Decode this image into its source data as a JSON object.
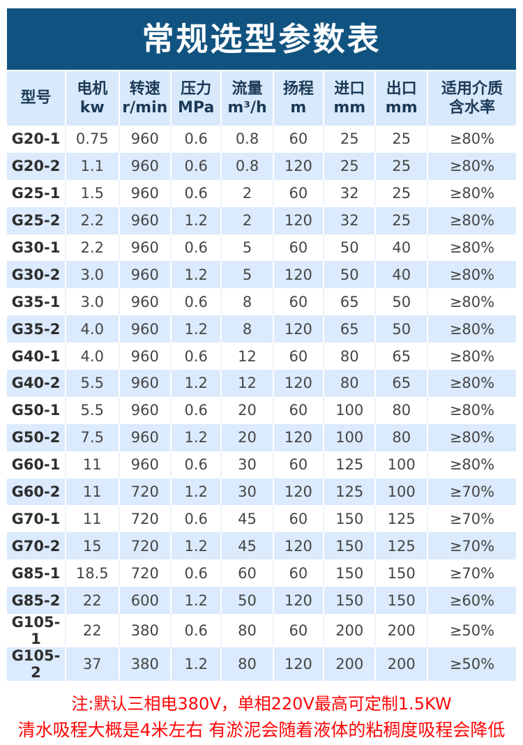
{
  "banner": {
    "title": "常规选型参数表"
  },
  "colors": {
    "banner_bg": "#115380",
    "banner_text": "#ffffff",
    "header_row_bg": "#d8e9fb",
    "alt_row_bg": "#dbeafc",
    "white_row_bg": "#ffffff",
    "header_text": "#1c3a57",
    "cell_text": "#454545",
    "note_text": "#fe0606"
  },
  "table": {
    "columns": [
      {
        "name": "model",
        "line1": "型号",
        "line2": ""
      },
      {
        "name": "motor-kw",
        "line1": "电机",
        "line2": "kw"
      },
      {
        "name": "speed-rpm",
        "line1": "转速",
        "line2": "r/min"
      },
      {
        "name": "pressure-mpa",
        "line1": "压力",
        "line2": "MPa"
      },
      {
        "name": "flow-m3h",
        "line1": "流量",
        "line2": "m³/h"
      },
      {
        "name": "head-m",
        "line1": "扬程",
        "line2": "m"
      },
      {
        "name": "inlet-mm",
        "line1": "进口",
        "line2": "mm"
      },
      {
        "name": "outlet-mm",
        "line1": "出口",
        "line2": "mm"
      },
      {
        "name": "water-content",
        "line1": "适用介质",
        "line2": "含水率"
      }
    ],
    "col_widths": [
      "11.5%",
      "10.5%",
      "10.2%",
      "9.9%",
      "10.2%",
      "9.9%",
      "10.2%",
      "10.2%",
      "17.4%"
    ],
    "rows": [
      [
        "G20-1",
        "0.75",
        "960",
        "0.6",
        "0.8",
        "60",
        "25",
        "25",
        "≥80%"
      ],
      [
        "G20-2",
        "1.1",
        "960",
        "0.6",
        "0.8",
        "120",
        "25",
        "25",
        "≥80%"
      ],
      [
        "G25-1",
        "1.5",
        "960",
        "0.6",
        "2",
        "60",
        "32",
        "25",
        "≥80%"
      ],
      [
        "G25-2",
        "2.2",
        "960",
        "1.2",
        "2",
        "120",
        "32",
        "25",
        "≥80%"
      ],
      [
        "G30-1",
        "2.2",
        "960",
        "0.6",
        "5",
        "60",
        "50",
        "40",
        "≥80%"
      ],
      [
        "G30-2",
        "3.0",
        "960",
        "1.2",
        "5",
        "120",
        "50",
        "40",
        "≥80%"
      ],
      [
        "G35-1",
        "3.0",
        "960",
        "0.6",
        "8",
        "60",
        "65",
        "50",
        "≥80%"
      ],
      [
        "G35-2",
        "4.0",
        "960",
        "1.2",
        "8",
        "120",
        "65",
        "50",
        "≥80%"
      ],
      [
        "G40-1",
        "4.0",
        "960",
        "0.6",
        "12",
        "60",
        "80",
        "65",
        "≥80%"
      ],
      [
        "G40-2",
        "5.5",
        "960",
        "1.2",
        "12",
        "120",
        "80",
        "65",
        "≥80%"
      ],
      [
        "G50-1",
        "5.5",
        "960",
        "0.6",
        "20",
        "60",
        "100",
        "80",
        "≥80%"
      ],
      [
        "G50-2",
        "7.5",
        "960",
        "1.2",
        "20",
        "120",
        "100",
        "80",
        "≥80%"
      ],
      [
        "G60-1",
        "11",
        "960",
        "0.6",
        "30",
        "60",
        "125",
        "100",
        "≥80%"
      ],
      [
        "G60-2",
        "11",
        "720",
        "1.2",
        "30",
        "120",
        "125",
        "100",
        "≥70%"
      ],
      [
        "G70-1",
        "11",
        "720",
        "0.6",
        "45",
        "60",
        "150",
        "125",
        "≥70%"
      ],
      [
        "G70-2",
        "15",
        "720",
        "1.2",
        "45",
        "120",
        "150",
        "125",
        "≥70%"
      ],
      [
        "G85-1",
        "18.5",
        "720",
        "0.6",
        "60",
        "60",
        "150",
        "150",
        "≥70%"
      ],
      [
        "G85-2",
        "22",
        "600",
        "1.2",
        "50",
        "120",
        "150",
        "150",
        "≥60%"
      ],
      [
        "G105-1",
        "22",
        "380",
        "0.6",
        "80",
        "60",
        "200",
        "200",
        "≥50%"
      ],
      [
        "G105-2",
        "37",
        "380",
        "1.2",
        "80",
        "120",
        "200",
        "200",
        "≥50%"
      ]
    ]
  },
  "notes": {
    "line1": "注:默认三相电380V，单相220V最高可定制1.5KW",
    "line2": "清水吸程大概是4米左右 有淤泥会随着液体的粘稠度吸程会降低"
  }
}
